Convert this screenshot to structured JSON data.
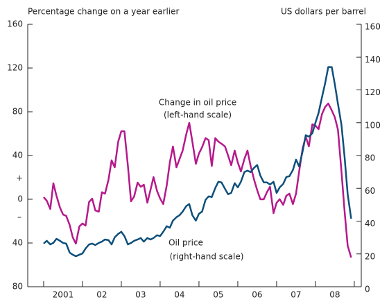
{
  "chart_data": {
    "type": "line",
    "y_label": "Percentage change on a year earlier",
    "y2_label": "US dollars per barrel",
    "annotations": [
      "Change in oil price",
      "(left-hand scale)",
      "Oil price",
      "(right-hand scale)"
    ],
    "sign_labels": [
      "+",
      "–"
    ],
    "xlim": [
      2000.59,
      2009.18
    ],
    "xticks": [
      {
        "value": 2001.5,
        "label": "2001"
      },
      {
        "value": 2002.5,
        "label": "02"
      },
      {
        "value": 2003.5,
        "label": "03"
      },
      {
        "value": 2004.5,
        "label": "04"
      },
      {
        "value": 2005.5,
        "label": "05"
      },
      {
        "value": 2006.5,
        "label": "06"
      },
      {
        "value": 2007.5,
        "label": "07"
      },
      {
        "value": 2008.5,
        "label": "08"
      }
    ],
    "ylim": [
      -80,
      160
    ],
    "yticks": [
      {
        "value": -80,
        "label": "80"
      },
      {
        "value": -40,
        "label": "40"
      },
      0,
      40,
      80,
      120,
      160
    ],
    "y2lim": [
      0,
      160
    ],
    "y2ticks": [
      0,
      20,
      40,
      60,
      80,
      100,
      120,
      140,
      160
    ],
    "x": [
      2001.0,
      2001.08,
      2001.17,
      2001.25,
      2001.33,
      2001.42,
      2001.5,
      2001.58,
      2001.67,
      2001.75,
      2001.83,
      2001.92,
      2002.0,
      2002.08,
      2002.17,
      2002.25,
      2002.33,
      2002.42,
      2002.5,
      2002.58,
      2002.67,
      2002.75,
      2002.83,
      2002.92,
      2003.0,
      2003.08,
      2003.17,
      2003.25,
      2003.33,
      2003.42,
      2003.5,
      2003.58,
      2003.67,
      2003.75,
      2003.83,
      2003.92,
      2004.0,
      2004.08,
      2004.17,
      2004.25,
      2004.33,
      2004.42,
      2004.5,
      2004.58,
      2004.67,
      2004.75,
      2004.83,
      2004.92,
      2005.0,
      2005.08,
      2005.17,
      2005.25,
      2005.33,
      2005.42,
      2005.5,
      2005.58,
      2005.67,
      2005.75,
      2005.83,
      2005.92,
      2006.0,
      2006.08,
      2006.17,
      2006.25,
      2006.33,
      2006.42,
      2006.5,
      2006.58,
      2006.67,
      2006.75,
      2006.83,
      2006.92,
      2007.0,
      2007.08,
      2007.17,
      2007.25,
      2007.33,
      2007.42,
      2007.5,
      2007.58,
      2007.67,
      2007.75,
      2007.83,
      2007.92,
      2008.0,
      2008.08,
      2008.17,
      2008.25,
      2008.33,
      2008.42,
      2008.5,
      2008.58,
      2008.67,
      2008.75,
      2008.83,
      2008.92
    ],
    "series": [
      {
        "name": "Change in oil price",
        "color": "#b5198b",
        "axis": "y",
        "values": [
          1.9,
          -1.3,
          -8.9,
          14.6,
          3.2,
          -7.6,
          -14,
          -15.2,
          -23.5,
          -34.9,
          -40.6,
          -24.8,
          -22.2,
          -24.1,
          -2.5,
          0.6,
          -10.2,
          -11.4,
          6.4,
          5.1,
          17.8,
          35.6,
          29.2,
          52.7,
          62.2,
          62.2,
          30.5,
          -1.9,
          2.5,
          15.2,
          11.4,
          13.3,
          -3.2,
          8.3,
          20.3,
          7.6,
          0.6,
          -4.4,
          12.7,
          33.7,
          48.3,
          29.2,
          36.8,
          44.5,
          59.1,
          69.9,
          52.7,
          32.4,
          41.9,
          47.6,
          55.9,
          54,
          30.5,
          55.9,
          52.7,
          50.8,
          48.3,
          40,
          31.1,
          44.5,
          33.7,
          25.4,
          36.8,
          44.5,
          30.5,
          17.8,
          8.3,
          0,
          0,
          6.4,
          11.4,
          -12.7,
          -3.2,
          0,
          -5.1,
          3.2,
          5.1,
          -4.4,
          5.1,
          25.4,
          46.4,
          57.2,
          48.3,
          68.6,
          67.3,
          64.1,
          78.1,
          84.4,
          87.6,
          81.3,
          74.9,
          63.5,
          25.4,
          -10.8,
          -42.5,
          -53.3
        ]
      },
      {
        "name": "Oil price",
        "color": "#0d4f7a",
        "axis": "y2",
        "values": [
          26.3,
          28,
          25.8,
          26.7,
          29.2,
          28,
          26.7,
          26.3,
          20.8,
          19.5,
          18.6,
          19.5,
          20.3,
          23.3,
          25.8,
          26.3,
          25.4,
          26.7,
          27.5,
          28.8,
          28.4,
          25.8,
          30.1,
          32.2,
          33.5,
          30.9,
          25.8,
          26.7,
          28,
          28.8,
          29.7,
          27.5,
          29.7,
          28.8,
          29.7,
          31.4,
          30.9,
          33.5,
          36.9,
          36,
          40.3,
          42.4,
          43.6,
          45.8,
          49.1,
          50.4,
          43.6,
          40.3,
          44.5,
          45.8,
          53,
          55.1,
          54.7,
          60.2,
          64,
          63.6,
          59.7,
          56.4,
          57.2,
          63.1,
          60.6,
          64,
          69.9,
          70.8,
          69.9,
          72.5,
          74.2,
          67.8,
          63.6,
          63.6,
          62.3,
          64,
          57.2,
          60.6,
          62.7,
          66.9,
          67.4,
          71.2,
          77.5,
          73.3,
          82.6,
          92.4,
          91.5,
          93.6,
          100,
          105.9,
          115.7,
          124.1,
          133.9,
          133.9,
          123.3,
          111.4,
          98.7,
          79.2,
          56.4,
          41.5
        ]
      }
    ]
  }
}
